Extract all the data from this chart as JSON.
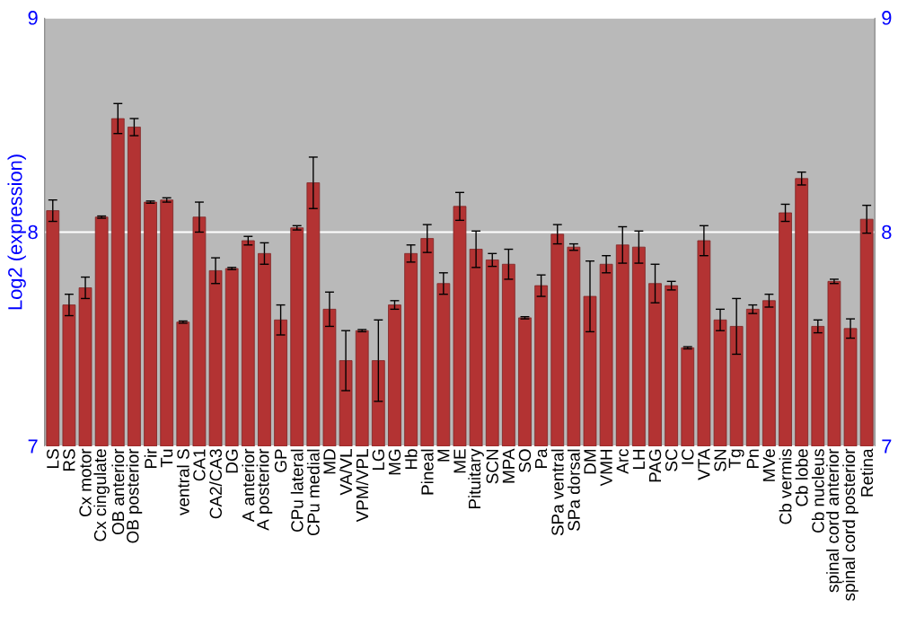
{
  "chart_data": {
    "type": "bar",
    "ylabel": "Log2 (expression)",
    "categories": [
      "LS",
      "RS",
      "Cx motor",
      "Cx cingulate",
      "OB anterior",
      "OB posterior",
      "Pir",
      "Tu",
      "ventral S",
      "CA1",
      "CA2/CA3",
      "DG",
      "A anterior",
      "A posterior",
      "GP",
      "CPu lateral",
      "CPu medial",
      "MD",
      "VA/VL",
      "VPM/VPL",
      "LG",
      "MG",
      "Hb",
      "Pineal",
      "M",
      "ME",
      "Pituitary",
      "SCN",
      "MPA",
      "SO",
      "Pa",
      "SPa ventral",
      "SPa dorsal",
      "DM",
      "VMH",
      "Arc",
      "LH",
      "PAG",
      "SC",
      "IC",
      "VTA",
      "SN",
      "Tg",
      "Pn",
      "MVe",
      "Cb vermis",
      "Cb lobe",
      "Cb nucleus",
      "spinal cord anterior",
      "spinal cord posterior",
      "Retina"
    ],
    "values": [
      8.1,
      7.66,
      7.74,
      8.07,
      8.53,
      8.49,
      8.14,
      8.15,
      7.58,
      8.07,
      7.82,
      7.83,
      7.96,
      7.9,
      7.59,
      8.02,
      8.23,
      7.64,
      7.4,
      7.54,
      7.4,
      7.66,
      7.9,
      7.97,
      7.76,
      8.12,
      7.92,
      7.87,
      7.85,
      7.6,
      7.75,
      7.99,
      7.93,
      7.7,
      7.85,
      7.94,
      7.93,
      7.76,
      7.75,
      7.46,
      7.96,
      7.59,
      7.56,
      7.64,
      7.68,
      8.09,
      8.25,
      7.56,
      7.77,
      7.55,
      8.06
    ],
    "errors": [
      0.05,
      0.05,
      0.05,
      0.005,
      0.07,
      0.04,
      0.005,
      0.01,
      0.005,
      0.07,
      0.06,
      0.005,
      0.02,
      0.05,
      0.07,
      0.01,
      0.12,
      0.08,
      0.14,
      0.005,
      0.19,
      0.02,
      0.04,
      0.065,
      0.05,
      0.065,
      0.085,
      0.03,
      0.07,
      0.005,
      0.05,
      0.045,
      0.015,
      0.165,
      0.04,
      0.085,
      0.075,
      0.09,
      0.02,
      0.005,
      0.07,
      0.05,
      0.13,
      0.02,
      0.03,
      0.04,
      0.03,
      0.03,
      0.01,
      0.045,
      0.065
    ],
    "color": "#b33333",
    "ylim": [
      7,
      9
    ],
    "yticks": [
      7,
      8,
      9
    ],
    "y2lim": [
      7,
      9
    ],
    "y2ticks": [
      7,
      8,
      9
    ],
    "grid": "y"
  }
}
